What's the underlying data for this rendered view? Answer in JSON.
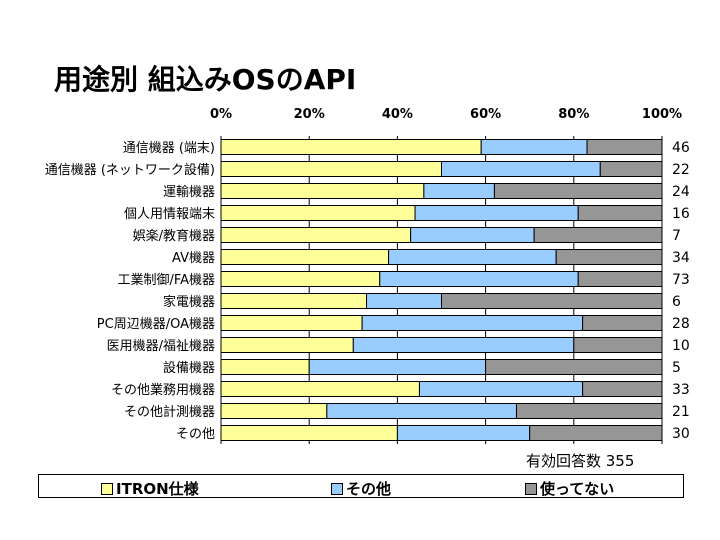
{
  "title": "用途別 組込みOSのAPI",
  "response_count_text": "有効回答数  355",
  "colors": {
    "itron": "#ffff99",
    "other": "#99ccff",
    "unused": "#969696"
  },
  "legend": [
    {
      "name": "ITRON仕様",
      "color_key": "itron"
    },
    {
      "name": "その他",
      "color_key": "other"
    },
    {
      "name": "使ってない",
      "color_key": "unused"
    }
  ],
  "chart_data": {
    "type": "bar",
    "orientation": "horizontal",
    "stacked": "100%",
    "title": "用途別 組込みOSのAPI",
    "x_ticks": [
      "0%",
      "20%",
      "40%",
      "60%",
      "80%",
      "100%"
    ],
    "xlim": [
      0,
      100
    ],
    "categories": [
      "通信機器 (端末)",
      "通信機器 (ネットワーク設備)",
      "運輸機器",
      "個人用情報端末",
      "娯楽/教育機器",
      "AV機器",
      "工業制御/FA機器",
      "家電機器",
      "PC周辺機器/OA機器",
      "医用機器/福祉機器",
      "設備機器",
      "その他業務用機器",
      "その他計測機器",
      "その他"
    ],
    "series": [
      {
        "name": "ITRON仕様",
        "values": [
          59,
          50,
          46,
          44,
          43,
          38,
          36,
          33,
          32,
          30,
          20,
          45,
          24,
          40
        ]
      },
      {
        "name": "その他",
        "values": [
          24,
          36,
          16,
          37,
          28,
          38,
          45,
          17,
          50,
          50,
          40,
          37,
          43,
          30
        ]
      },
      {
        "name": "使ってない",
        "values": [
          17,
          14,
          38,
          19,
          29,
          24,
          19,
          50,
          18,
          20,
          40,
          18,
          33,
          30
        ]
      }
    ],
    "counts": [
      46,
      22,
      24,
      16,
      7,
      34,
      73,
      6,
      28,
      10,
      5,
      33,
      21,
      30
    ],
    "legend_position": "bottom",
    "grid": true
  }
}
